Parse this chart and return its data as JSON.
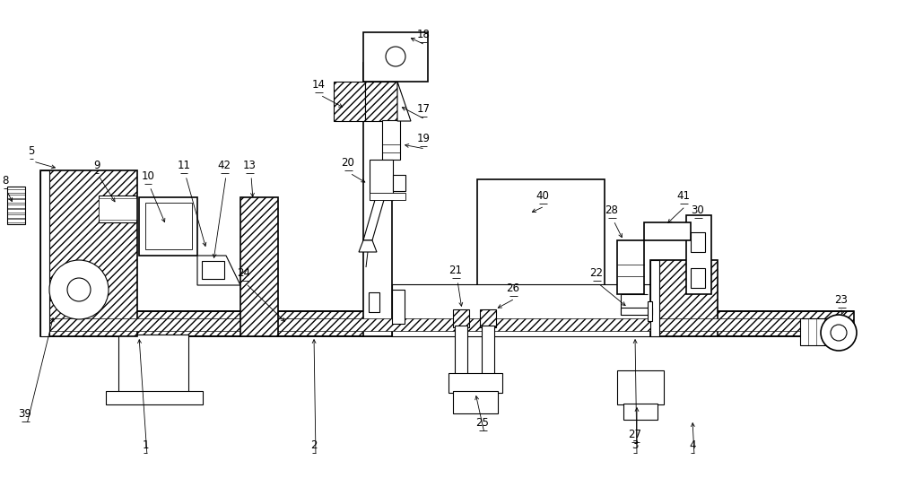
{
  "bg_color": "#ffffff",
  "fig_width": 10.0,
  "fig_height": 5.33,
  "lw": 0.8,
  "lw2": 1.2
}
